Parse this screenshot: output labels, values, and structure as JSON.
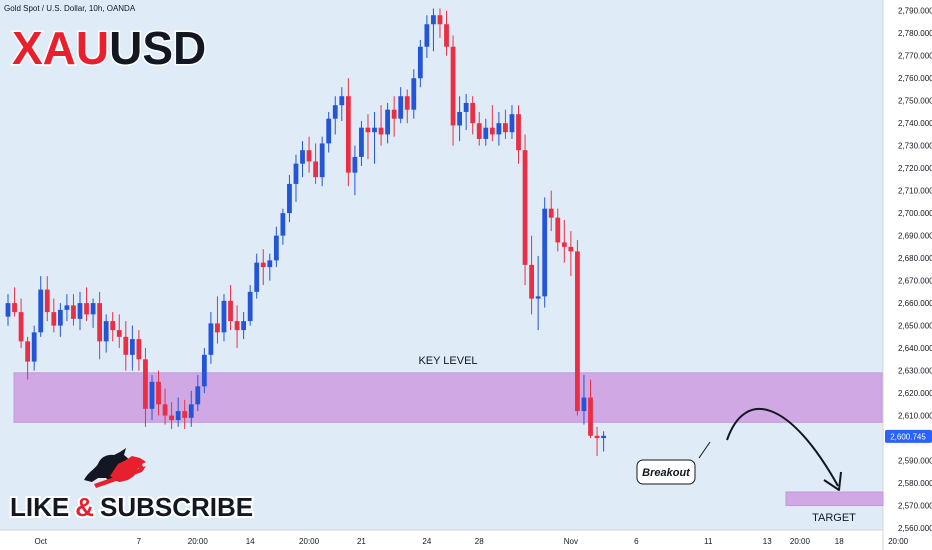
{
  "header": {
    "instrument": "Gold Spot / U.S. Dollar, 10h, OANDA",
    "title_red": "XAU",
    "title_black": "USD"
  },
  "colors": {
    "bg": "#dfecf8",
    "axis_bg": "#ffffff",
    "bull": "#2455d6",
    "bear": "#ea2f45",
    "zone": "#d0a9e4",
    "zone_border": "#c496dc",
    "price_tag": "#2962ff"
  },
  "labels": {
    "key_level": "KEY LEVEL",
    "breakout": "Breakout",
    "target": "TARGET",
    "like": "LIKE",
    "amp": "&",
    "subscribe": "SUBSCRIBE"
  },
  "chart_data": {
    "type": "candlestick",
    "title": "",
    "xlabel": "",
    "ylabel": "",
    "ylim": [
      2556,
      2793
    ],
    "y_ticks": [
      2560,
      2570,
      2580,
      2590,
      2600,
      2610,
      2620,
      2630,
      2640,
      2650,
      2660,
      2670,
      2680,
      2690,
      2700,
      2710,
      2720,
      2730,
      2740,
      2750,
      2760,
      2770,
      2780,
      2790
    ],
    "y_tick_labels": [
      "2,560.000",
      "2,570.000",
      "2,580.000",
      "2,590.000",
      "2,600.000",
      "2,610.000",
      "2,620.000",
      "2,630.000",
      "2,640.000",
      "2,650.000",
      "2,660.000",
      "2,670.000",
      "2,680.000",
      "2,690.000",
      "2,700.000",
      "2,710.000",
      "2,720.000",
      "2,730.000",
      "2,740.000",
      "2,750.000",
      "2,760.000",
      "2,770.000",
      "2,780.000",
      "2,790.000"
    ],
    "x_labels": [
      {
        "label": "Oct",
        "i": 5
      },
      {
        "label": "7",
        "i": 20
      },
      {
        "label": "20:00",
        "i": 29
      },
      {
        "label": "14",
        "i": 37
      },
      {
        "label": "20:00",
        "i": 46
      },
      {
        "label": "21",
        "i": 54
      },
      {
        "label": "24",
        "i": 64
      },
      {
        "label": "28",
        "i": 72
      },
      {
        "label": "Nov",
        "i": 86
      },
      {
        "label": "6",
        "i": 96
      },
      {
        "label": "11",
        "i": 107
      },
      {
        "label": "13",
        "i": 116
      },
      {
        "label": "20:00",
        "i": 121
      },
      {
        "label": "18",
        "i": 127
      },
      {
        "label": "20:00",
        "i": 136
      }
    ],
    "candles": [
      [
        2654,
        2664,
        2650,
        2660
      ],
      [
        2660,
        2667,
        2654,
        2656
      ],
      [
        2656,
        2662,
        2640,
        2643
      ],
      [
        2643,
        2645,
        2626,
        2634
      ],
      [
        2634,
        2650,
        2630,
        2647
      ],
      [
        2647,
        2672,
        2645,
        2666
      ],
      [
        2666,
        2672,
        2652,
        2656
      ],
      [
        2656,
        2662,
        2647,
        2650
      ],
      [
        2650,
        2660,
        2645,
        2657
      ],
      [
        2657,
        2664,
        2652,
        2659
      ],
      [
        2659,
        2664,
        2650,
        2653
      ],
      [
        2653,
        2665,
        2648,
        2660
      ],
      [
        2660,
        2667,
        2652,
        2655
      ],
      [
        2655,
        2662,
        2649,
        2660
      ],
      [
        2660,
        2665,
        2635,
        2643
      ],
      [
        2643,
        2655,
        2638,
        2652
      ],
      [
        2652,
        2656,
        2643,
        2648
      ],
      [
        2648,
        2655,
        2640,
        2645
      ],
      [
        2645,
        2652,
        2630,
        2637
      ],
      [
        2637,
        2650,
        2630,
        2644
      ],
      [
        2644,
        2648,
        2630,
        2635
      ],
      [
        2635,
        2640,
        2605,
        2613
      ],
      [
        2613,
        2628,
        2608,
        2625
      ],
      [
        2625,
        2630,
        2610,
        2615
      ],
      [
        2615,
        2622,
        2606,
        2610
      ],
      [
        2610,
        2616,
        2604,
        2608
      ],
      [
        2608,
        2618,
        2605,
        2612
      ],
      [
        2612,
        2617,
        2604,
        2609
      ],
      [
        2609,
        2621,
        2605,
        2615
      ],
      [
        2615,
        2628,
        2612,
        2623
      ],
      [
        2623,
        2640,
        2620,
        2637
      ],
      [
        2637,
        2656,
        2633,
        2651
      ],
      [
        2651,
        2663,
        2642,
        2647
      ],
      [
        2647,
        2664,
        2643,
        2661
      ],
      [
        2661,
        2668,
        2648,
        2652
      ],
      [
        2652,
        2659,
        2640,
        2648
      ],
      [
        2648,
        2656,
        2644,
        2652
      ],
      [
        2652,
        2668,
        2650,
        2665
      ],
      [
        2665,
        2682,
        2662,
        2678
      ],
      [
        2678,
        2684,
        2668,
        2676
      ],
      [
        2676,
        2682,
        2670,
        2679
      ],
      [
        2679,
        2694,
        2676,
        2690
      ],
      [
        2690,
        2702,
        2686,
        2700
      ],
      [
        2700,
        2717,
        2696,
        2713
      ],
      [
        2713,
        2726,
        2705,
        2722
      ],
      [
        2722,
        2732,
        2716,
        2728
      ],
      [
        2728,
        2734,
        2718,
        2723
      ],
      [
        2723,
        2731,
        2713,
        2716
      ],
      [
        2716,
        2734,
        2712,
        2731
      ],
      [
        2731,
        2745,
        2727,
        2742
      ],
      [
        2742,
        2752,
        2735,
        2748
      ],
      [
        2748,
        2756,
        2741,
        2752
      ],
      [
        2752,
        2760,
        2712,
        2718
      ],
      [
        2718,
        2730,
        2708,
        2725
      ],
      [
        2725,
        2741,
        2721,
        2738
      ],
      [
        2738,
        2744,
        2724,
        2736
      ],
      [
        2736,
        2745,
        2722,
        2738
      ],
      [
        2738,
        2748,
        2730,
        2735
      ],
      [
        2735,
        2749,
        2731,
        2746
      ],
      [
        2746,
        2752,
        2734,
        2742
      ],
      [
        2742,
        2756,
        2740,
        2752
      ],
      [
        2752,
        2755,
        2740,
        2746
      ],
      [
        2746,
        2764,
        2742,
        2760
      ],
      [
        2760,
        2777,
        2756,
        2774
      ],
      [
        2774,
        2788,
        2769,
        2784
      ],
      [
        2784,
        2791,
        2772,
        2788
      ],
      [
        2788,
        2791,
        2778,
        2784
      ],
      [
        2784,
        2790,
        2770,
        2774
      ],
      [
        2774,
        2779,
        2730,
        2739
      ],
      [
        2739,
        2752,
        2732,
        2745
      ],
      [
        2745,
        2753,
        2737,
        2749
      ],
      [
        2749,
        2752,
        2735,
        2740
      ],
      [
        2740,
        2745,
        2730,
        2733
      ],
      [
        2733,
        2742,
        2730,
        2738
      ],
      [
        2738,
        2748,
        2732,
        2735
      ],
      [
        2735,
        2745,
        2730,
        2740
      ],
      [
        2740,
        2746,
        2733,
        2736
      ],
      [
        2736,
        2748,
        2733,
        2744
      ],
      [
        2744,
        2748,
        2722,
        2728
      ],
      [
        2728,
        2735,
        2668,
        2677
      ],
      [
        2677,
        2690,
        2655,
        2662
      ],
      [
        2662,
        2681,
        2648,
        2663
      ],
      [
        2663,
        2707,
        2658,
        2702
      ],
      [
        2702,
        2710,
        2692,
        2698
      ],
      [
        2698,
        2702,
        2683,
        2687
      ],
      [
        2687,
        2697,
        2678,
        2685
      ],
      [
        2685,
        2692,
        2672,
        2683
      ],
      [
        2683,
        2688,
        2610,
        2612
      ],
      [
        2612,
        2628,
        2606,
        2618
      ],
      [
        2618,
        2626,
        2600,
        2601
      ],
      [
        2601,
        2605,
        2592,
        2600
      ],
      [
        2600,
        2603,
        2594,
        2601
      ]
    ],
    "key_level_zone": [
      2607,
      2629
    ],
    "target_zone": [
      2570,
      2576
    ],
    "current_price": 2600.745,
    "current_price_label": "2,600.745"
  }
}
